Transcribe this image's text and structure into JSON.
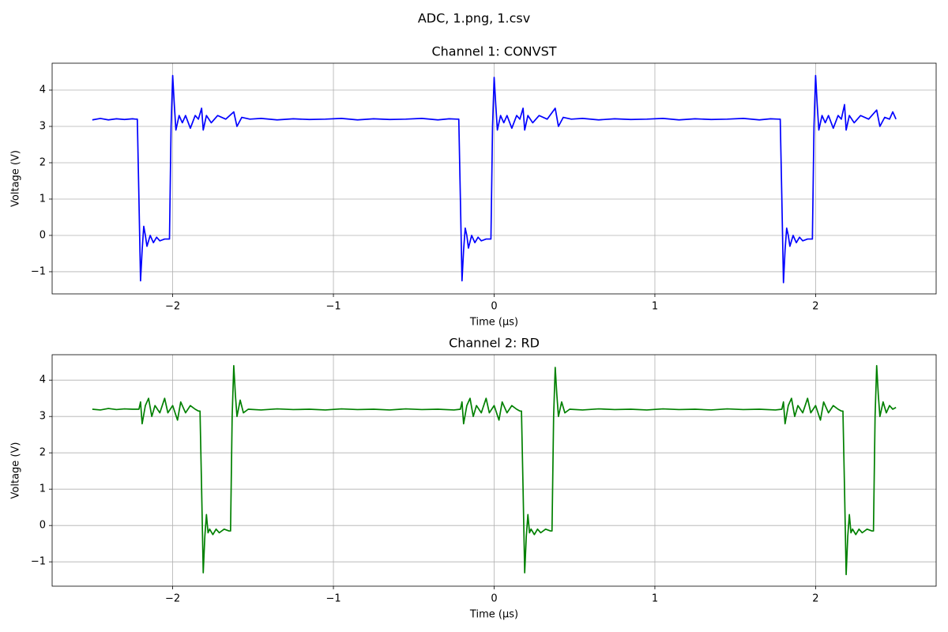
{
  "title": "ADC, 1.png, 1.csv",
  "chart_data": [
    {
      "type": "line",
      "title": "Channel 1: CONVST",
      "x_label": "Time (µs)",
      "y_label": "Voltage (V)",
      "xlim": [
        -2.75,
        2.75
      ],
      "ylim": [
        -1.61,
        4.74
      ],
      "xticks": [
        {
          "value": -2,
          "label": "−2"
        },
        {
          "value": -1,
          "label": "−1"
        },
        0,
        1,
        2
      ],
      "yticks": [
        {
          "value": -1,
          "label": "−1"
        },
        0,
        1,
        2,
        3,
        4
      ],
      "grid": true,
      "x": [
        -2.5,
        -2.45,
        -2.4,
        -2.35,
        -2.3,
        -2.25,
        -2.23,
        -2.22,
        -2.21,
        -2.2,
        -2.19,
        -2.18,
        -2.17,
        -2.16,
        -2.14,
        -2.12,
        -2.1,
        -2.08,
        -2.05,
        -2.02,
        -2.01,
        -2.0,
        -1.99,
        -1.98,
        -1.96,
        -1.94,
        -1.92,
        -1.89,
        -1.86,
        -1.84,
        -1.82,
        -1.81,
        -1.79,
        -1.76,
        -1.72,
        -1.67,
        -1.62,
        -1.6,
        -1.57,
        -1.52,
        -1.45,
        -1.35,
        -1.25,
        -1.15,
        -1.05,
        -0.95,
        -0.85,
        -0.75,
        -0.65,
        -0.55,
        -0.45,
        -0.35,
        -0.28,
        -0.23,
        -0.22,
        -0.21,
        -0.2,
        -0.19,
        -0.18,
        -0.17,
        -0.16,
        -0.14,
        -0.12,
        -0.1,
        -0.08,
        -0.05,
        -0.02,
        -0.01,
        0.0,
        0.01,
        0.02,
        0.04,
        0.06,
        0.08,
        0.11,
        0.14,
        0.16,
        0.18,
        0.19,
        0.21,
        0.24,
        0.28,
        0.33,
        0.38,
        0.4,
        0.43,
        0.48,
        0.55,
        0.65,
        0.75,
        0.85,
        0.95,
        1.05,
        1.15,
        1.25,
        1.35,
        1.45,
        1.55,
        1.65,
        1.72,
        1.77,
        1.78,
        1.79,
        1.8,
        1.81,
        1.82,
        1.83,
        1.84,
        1.86,
        1.88,
        1.9,
        1.92,
        1.95,
        1.98,
        1.99,
        2.0,
        2.01,
        2.02,
        2.04,
        2.06,
        2.08,
        2.11,
        2.14,
        2.16,
        2.18,
        2.19,
        2.21,
        2.24,
        2.28,
        2.33,
        2.38,
        2.4,
        2.43,
        2.46,
        2.48,
        2.5
      ],
      "series": [
        {
          "color": "#0000ff",
          "values": [
            3.18,
            3.22,
            3.18,
            3.21,
            3.19,
            3.21,
            3.2,
            3.2,
            1.0,
            -1.25,
            -0.4,
            0.25,
            0.0,
            -0.3,
            0.0,
            -0.2,
            -0.05,
            -0.15,
            -0.1,
            -0.1,
            3.0,
            4.4,
            3.6,
            2.9,
            3.3,
            3.1,
            3.3,
            2.95,
            3.3,
            3.2,
            3.5,
            2.9,
            3.3,
            3.1,
            3.3,
            3.2,
            3.4,
            3.0,
            3.25,
            3.2,
            3.22,
            3.18,
            3.21,
            3.19,
            3.2,
            3.22,
            3.18,
            3.21,
            3.19,
            3.2,
            3.22,
            3.18,
            3.21,
            3.2,
            3.2,
            1.0,
            -1.25,
            -0.4,
            0.2,
            0.0,
            -0.35,
            0.0,
            -0.2,
            -0.05,
            -0.15,
            -0.1,
            -0.1,
            3.0,
            4.35,
            3.6,
            2.9,
            3.3,
            3.1,
            3.3,
            2.95,
            3.3,
            3.2,
            3.5,
            2.9,
            3.3,
            3.1,
            3.3,
            3.2,
            3.5,
            3.0,
            3.25,
            3.2,
            3.22,
            3.18,
            3.21,
            3.19,
            3.2,
            3.22,
            3.18,
            3.21,
            3.19,
            3.2,
            3.22,
            3.18,
            3.21,
            3.2,
            3.2,
            1.0,
            -1.3,
            -0.4,
            0.2,
            0.0,
            -0.3,
            0.0,
            -0.2,
            -0.05,
            -0.15,
            -0.1,
            -0.1,
            3.0,
            4.4,
            3.6,
            2.9,
            3.3,
            3.1,
            3.3,
            2.95,
            3.3,
            3.2,
            3.6,
            2.9,
            3.3,
            3.1,
            3.3,
            3.2,
            3.45,
            3.0,
            3.25,
            3.2,
            3.4,
            3.2
          ]
        }
      ]
    },
    {
      "type": "line",
      "title": "Channel 2: RD",
      "x_label": "Time (µs)",
      "y_label": "Voltage (V)",
      "xlim": [
        -2.75,
        2.75
      ],
      "ylim": [
        -1.67,
        4.7
      ],
      "xticks": [
        {
          "value": -2,
          "label": "−2"
        },
        {
          "value": -1,
          "label": "−1"
        },
        0,
        1,
        2
      ],
      "yticks": [
        {
          "value": -1,
          "label": "−1"
        },
        0,
        1,
        2,
        3,
        4
      ],
      "grid": true,
      "x": [
        -2.5,
        -2.45,
        -2.4,
        -2.35,
        -2.3,
        -2.25,
        -2.21,
        -2.2,
        -2.19,
        -2.17,
        -2.15,
        -2.13,
        -2.11,
        -2.08,
        -2.05,
        -2.03,
        -2.0,
        -1.97,
        -1.95,
        -1.92,
        -1.89,
        -1.86,
        -1.84,
        -1.83,
        -1.82,
        -1.81,
        -1.8,
        -1.79,
        -1.78,
        -1.77,
        -1.75,
        -1.73,
        -1.71,
        -1.68,
        -1.65,
        -1.64,
        -1.63,
        -1.62,
        -1.61,
        -1.6,
        -1.58,
        -1.56,
        -1.53,
        -1.45,
        -1.35,
        -1.25,
        -1.15,
        -1.05,
        -0.95,
        -0.85,
        -0.75,
        -0.65,
        -0.55,
        -0.45,
        -0.35,
        -0.25,
        -0.21,
        -0.2,
        -0.19,
        -0.17,
        -0.15,
        -0.13,
        -0.11,
        -0.08,
        -0.05,
        -0.03,
        0.0,
        0.03,
        0.05,
        0.08,
        0.11,
        0.14,
        0.16,
        0.17,
        0.18,
        0.19,
        0.2,
        0.21,
        0.22,
        0.23,
        0.25,
        0.27,
        0.29,
        0.32,
        0.35,
        0.36,
        0.37,
        0.38,
        0.39,
        0.4,
        0.42,
        0.44,
        0.47,
        0.55,
        0.65,
        0.75,
        0.85,
        0.95,
        1.05,
        1.15,
        1.25,
        1.35,
        1.45,
        1.55,
        1.65,
        1.75,
        1.79,
        1.8,
        1.81,
        1.83,
        1.85,
        1.87,
        1.89,
        1.92,
        1.95,
        1.97,
        2.0,
        2.03,
        2.05,
        2.08,
        2.11,
        2.14,
        2.16,
        2.17,
        2.18,
        2.19,
        2.2,
        2.21,
        2.22,
        2.23,
        2.25,
        2.27,
        2.29,
        2.32,
        2.35,
        2.36,
        2.37,
        2.38,
        2.39,
        2.4,
        2.42,
        2.44,
        2.46,
        2.48,
        2.5
      ],
      "series": [
        {
          "color": "#008000",
          "values": [
            3.2,
            3.18,
            3.22,
            3.19,
            3.21,
            3.2,
            3.2,
            3.4,
            2.8,
            3.3,
            3.5,
            3.0,
            3.3,
            3.1,
            3.5,
            3.1,
            3.3,
            2.9,
            3.4,
            3.1,
            3.3,
            3.2,
            3.15,
            3.15,
            1.0,
            -1.3,
            -0.3,
            0.3,
            -0.2,
            -0.1,
            -0.25,
            -0.1,
            -0.2,
            -0.1,
            -0.15,
            -0.15,
            3.0,
            4.4,
            3.6,
            3.0,
            3.45,
            3.1,
            3.2,
            3.18,
            3.21,
            3.19,
            3.2,
            3.18,
            3.21,
            3.19,
            3.2,
            3.18,
            3.21,
            3.19,
            3.2,
            3.18,
            3.2,
            3.4,
            2.8,
            3.3,
            3.5,
            3.0,
            3.3,
            3.1,
            3.5,
            3.1,
            3.3,
            2.9,
            3.4,
            3.1,
            3.3,
            3.2,
            3.15,
            3.15,
            1.0,
            -1.3,
            -0.3,
            0.3,
            -0.2,
            -0.1,
            -0.25,
            -0.1,
            -0.2,
            -0.1,
            -0.15,
            -0.15,
            3.0,
            4.35,
            3.6,
            3.0,
            3.4,
            3.1,
            3.2,
            3.18,
            3.21,
            3.19,
            3.2,
            3.18,
            3.21,
            3.19,
            3.2,
            3.18,
            3.21,
            3.19,
            3.2,
            3.18,
            3.2,
            3.4,
            2.8,
            3.3,
            3.5,
            3.0,
            3.3,
            3.1,
            3.5,
            3.1,
            3.3,
            2.9,
            3.4,
            3.1,
            3.3,
            3.2,
            3.15,
            3.15,
            1.0,
            -1.35,
            -0.3,
            0.3,
            -0.2,
            -0.1,
            -0.25,
            -0.1,
            -0.2,
            -0.1,
            -0.15,
            -0.15,
            3.0,
            4.4,
            3.6,
            3.0,
            3.4,
            3.1,
            3.3,
            3.2,
            3.25
          ]
        }
      ]
    }
  ]
}
